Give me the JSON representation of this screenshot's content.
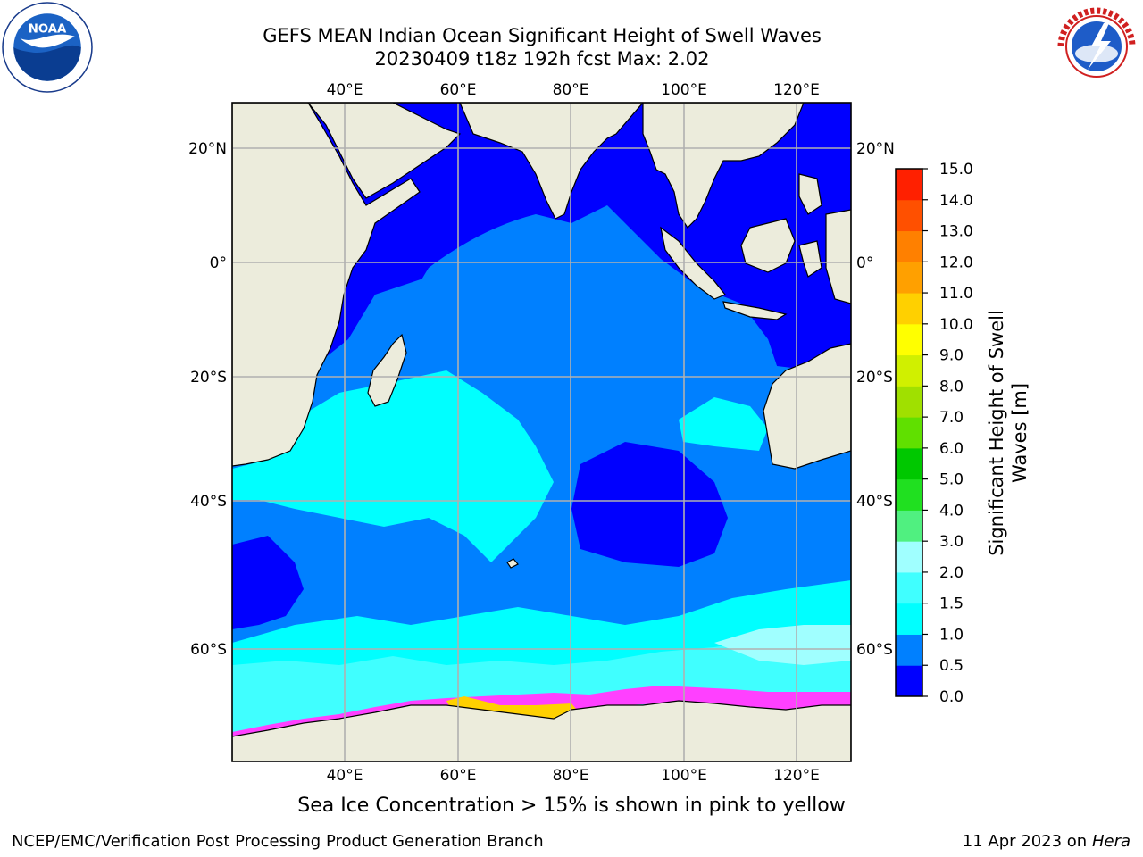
{
  "header": {
    "title_line1": "GEFS MEAN Indian Ocean Significant Height of Swell Waves",
    "title_line2": "20230409 t18z 192h fcst   Max: 2.02"
  },
  "map": {
    "lon_ticks": [
      "40°E",
      "60°E",
      "80°E",
      "100°E",
      "120°E"
    ],
    "lat_ticks": [
      "20°N",
      "0°",
      "20°S",
      "40°S",
      "60°S"
    ],
    "extent": {
      "lon": [
        20,
        130
      ],
      "lat": [
        -73,
        27
      ]
    }
  },
  "colorbar": {
    "label_line1": "Significant Height of Swell",
    "label_line2": "Waves [m]",
    "ticks": [
      "0.0",
      "0.5",
      "1.0",
      "1.5",
      "2.0",
      "3.0",
      "4.0",
      "5.0",
      "6.0",
      "7.0",
      "8.0",
      "9.0",
      "10.0",
      "11.0",
      "12.0",
      "13.0",
      "14.0",
      "15.0"
    ],
    "colors": [
      "#0000ff",
      "#0080ff",
      "#00ffff",
      "#40ffff",
      "#a0ffff",
      "#50f080",
      "#20e020",
      "#00c800",
      "#60e000",
      "#a0e000",
      "#d0f000",
      "#ffff00",
      "#ffd000",
      "#ffa000",
      "#ff8000",
      "#ff5000",
      "#ff2000"
    ]
  },
  "footer": {
    "note": "Sea Ice Concentration > 15% is shown in pink to yellow",
    "left": "NCEP/EMC/Verification Post Processing Product Generation Branch",
    "right_prefix": "11 Apr 2023 on ",
    "right_host": "Hera"
  },
  "logos": {
    "left": "noaa-logo",
    "right": "nws-logo"
  }
}
